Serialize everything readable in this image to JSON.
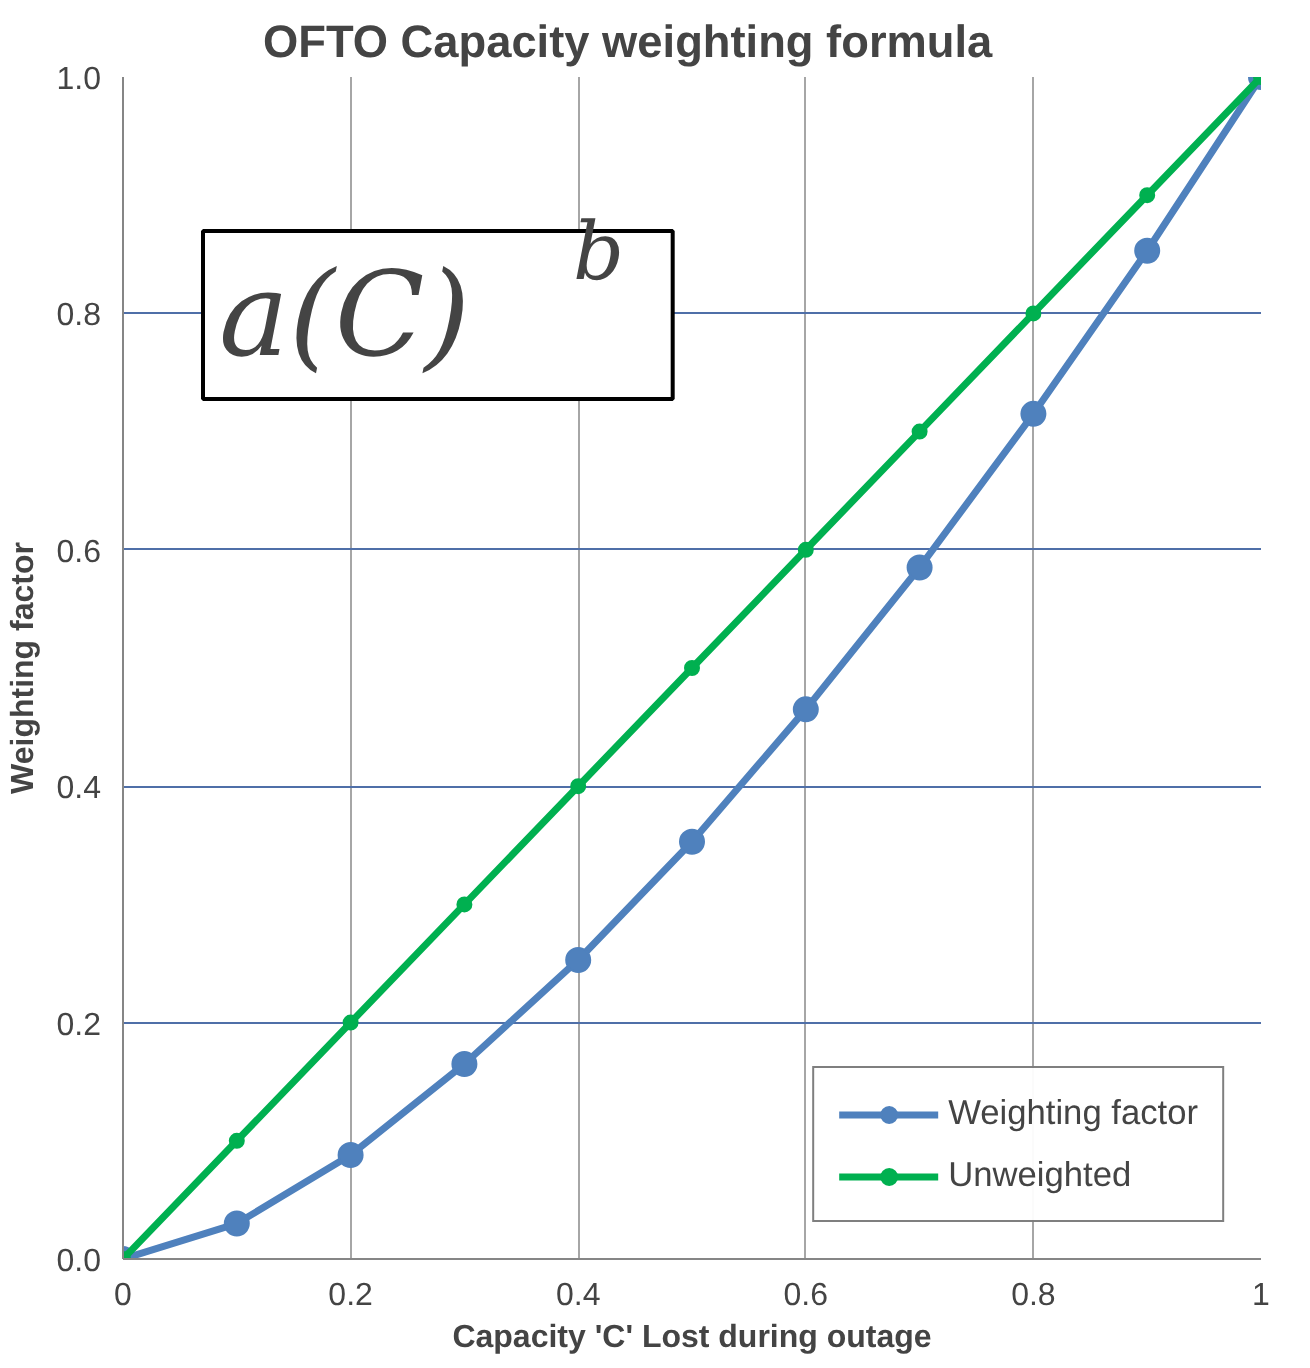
{
  "chart_data": {
    "type": "line",
    "title": "OFTO Capacity weighting formula",
    "xlabel": "Capacity 'C' Lost during outage",
    "ylabel": "Weighting factor",
    "annotations": [
      "a(C)$^{b}$"
    ],
    "x": [
      0,
      0.1,
      0.2,
      0.3,
      0.4,
      0.5,
      0.6,
      0.7,
      0.8,
      0.9,
      1
    ],
    "series": [
      {
        "name": "Weighting factor",
        "color": "#4f81bd",
        "marker": "circle",
        "values": [
          0,
          0.03,
          0.088,
          0.165,
          0.253,
          0.353,
          0.465,
          0.585,
          0.715,
          0.853,
          1.0
        ]
      },
      {
        "name": "Unweighted",
        "color": "#00b050",
        "marker": "circle",
        "values": [
          0,
          0.1,
          0.2,
          0.3,
          0.4,
          0.5,
          0.6,
          0.7,
          0.8,
          0.9,
          1.0
        ]
      }
    ],
    "xlim": [
      0,
      1
    ],
    "xticks": [
      0,
      0.2,
      0.4,
      0.6,
      0.8,
      {
        "value": 1,
        "label": "1"
      }
    ],
    "ylim": [
      0,
      1
    ],
    "yticks": [
      {
        "value": 0,
        "label": "0.0"
      },
      {
        "value": 0.2,
        "label": "0.2"
      },
      {
        "value": 0.4,
        "label": "0.4"
      },
      {
        "value": 0.6,
        "label": "0.6"
      },
      {
        "value": 0.8,
        "label": "0.8"
      },
      {
        "value": 1,
        "label": "1.0"
      }
    ],
    "grid": true,
    "legend": "bottom right",
    "line_style": "solid"
  }
}
